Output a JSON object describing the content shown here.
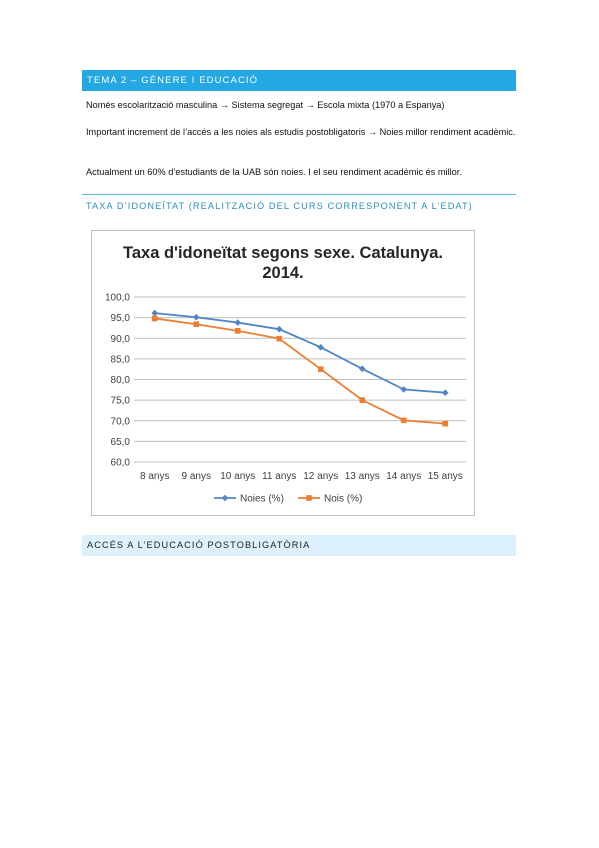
{
  "section1": {
    "title": "TEMA 2 – GÈNERE I EDUCACIÓ",
    "paragraphs": [
      "Només escolarització masculina → Sistema segregat → Escola mixta (1970 a Espanya)",
      "Important increment de l’accés a les noies als estudis postobligatoris → Noies millor rendiment acadèmic.",
      "Actualment un 60% d’estudiants de la UAB són noies. I el seu rendiment acadèmic és millor."
    ]
  },
  "subsection1": {
    "title": "TAXA D’IDONEÏTAT (REALITZACIÓ DEL CURS CORRESPONENT A L’EDAT)"
  },
  "chart_data": {
    "type": "line",
    "title": "Taxa d'idoneïtat segons sexe. Catalunya. 2014.",
    "title_lines": [
      "Taxa d'idoneïtat segons sexe. Catalunya.",
      "2014."
    ],
    "categories": [
      "8 anys",
      "9 anys",
      "10 anys",
      "11 anys",
      "12 anys",
      "13 anys",
      "14 anys",
      "15 anys"
    ],
    "series": [
      {
        "name": "Noies (%)",
        "values": [
          96.1,
          95.1,
          93.8,
          92.2,
          87.8,
          82.6,
          77.6,
          76.8
        ],
        "color": "#4f86c6",
        "marker": "diamond"
      },
      {
        "name": "Nois (%)",
        "values": [
          94.8,
          93.4,
          91.8,
          89.9,
          82.5,
          75.0,
          70.1,
          69.3
        ],
        "color": "#ed7d31",
        "marker": "square"
      }
    ],
    "ylim": [
      60,
      100
    ],
    "yticks": [
      "60,0",
      "65,0",
      "70,0",
      "75,0",
      "80,0",
      "85,0",
      "90,0",
      "95,0",
      "100,0"
    ],
    "grid": true,
    "legend": "bottom"
  },
  "section2": {
    "title": "ACCÉS A L’EDUCACIÓ POSTOBLIGATÒRIA"
  },
  "colors": {
    "accent": "#23a8e4",
    "light_accent": "#dcf1fb",
    "subheading": "#2a8fc0"
  }
}
